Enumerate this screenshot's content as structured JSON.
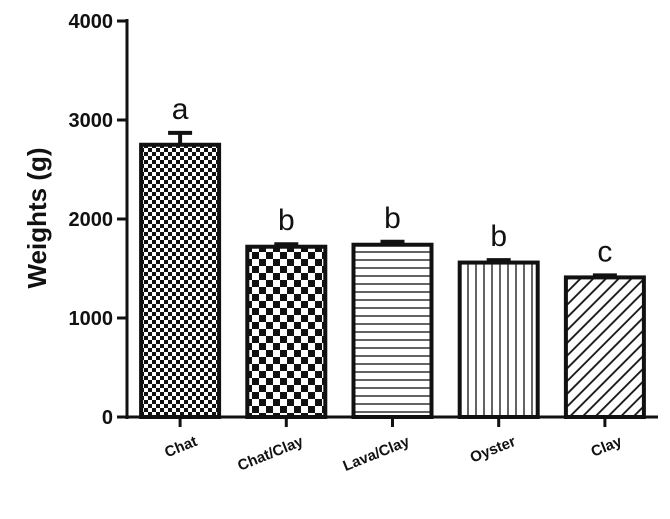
{
  "chart_data": {
    "type": "bar",
    "ylabel": "Weights (g)",
    "xlabel": "",
    "ylim": [
      0,
      4000
    ],
    "yticks": [
      0,
      1000,
      2000,
      3000,
      4000
    ],
    "ytick_labels": [
      "0",
      "1000",
      "2000",
      "3000",
      "4000"
    ],
    "grid": false,
    "categories": [
      "Chat",
      "Chat/Clay",
      "Lava/Clay",
      "Oyster",
      "Clay"
    ],
    "values": [
      2750,
      1720,
      1740,
      1560,
      1410
    ],
    "errors": [
      120,
      25,
      30,
      25,
      20
    ],
    "significance_letters": [
      "a",
      "b",
      "b",
      "b",
      "c"
    ],
    "bar_patterns": [
      "checker-fine",
      "checker-coarse",
      "horizontal-lines",
      "vertical-lines",
      "diagonal-lines"
    ]
  }
}
